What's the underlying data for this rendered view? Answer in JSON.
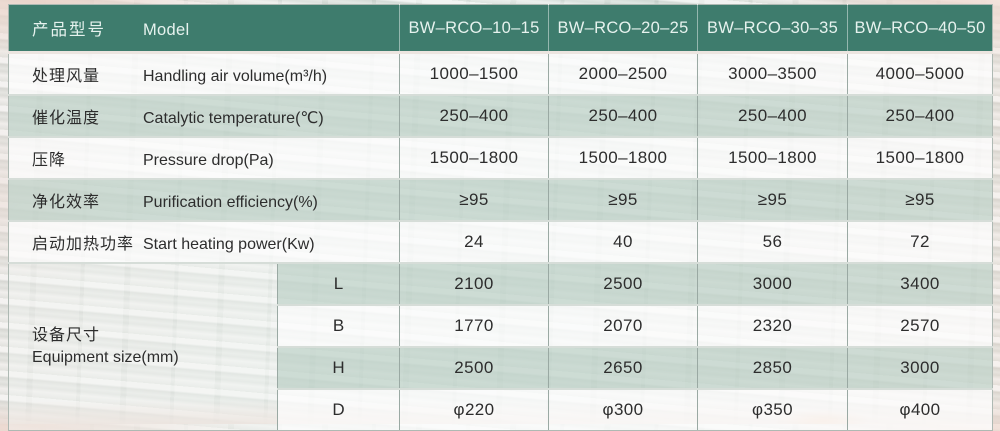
{
  "colors": {
    "header_bg": "#3e7c6d",
    "header_text": "#e6f2ee",
    "row_green": "#ccd8d2",
    "row_white": "#f8f9f7",
    "body_text": "#2d2d2d"
  },
  "table": {
    "header": {
      "label_zh": "产品型号",
      "label_en": "Model",
      "models": [
        "BW–RCO–10–15",
        "BW–RCO–20–25",
        "BW–RCO–30–35",
        "BW–RCO–40–50"
      ]
    },
    "rows": [
      {
        "zh": "处理风量",
        "en": "Handling air volume(m³/h)",
        "values": [
          "1000–1500",
          "2000–2500",
          "3000–3500",
          "4000–5000"
        ]
      },
      {
        "zh": "催化温度",
        "en": "Catalytic temperature(℃)",
        "values": [
          "250–400",
          "250–400",
          "250–400",
          "250–400"
        ]
      },
      {
        "zh": "压降",
        "en": "Pressure drop(Pa)",
        "values": [
          "1500–1800",
          "1500–1800",
          "1500–1800",
          "1500–1800"
        ]
      },
      {
        "zh": "净化效率",
        "en": "Purification efficiency(%)",
        "values": [
          "≥95",
          "≥95",
          "≥95",
          "≥95"
        ]
      },
      {
        "zh": "启动加热功率",
        "en": "Start heating power(Kw)",
        "values": [
          "24",
          "40",
          "56",
          "72"
        ]
      }
    ],
    "equipment_size": {
      "zh": "设备尺寸",
      "en": "Equipment size(mm)",
      "rows": [
        {
          "dim": "L",
          "values": [
            "2100",
            "2500",
            "3000",
            "3400"
          ]
        },
        {
          "dim": "B",
          "values": [
            "1770",
            "2070",
            "2320",
            "2570"
          ]
        },
        {
          "dim": "H",
          "values": [
            "2500",
            "2650",
            "2850",
            "3000"
          ]
        },
        {
          "dim": "D",
          "values": [
            "φ220",
            "φ300",
            "φ350",
            "φ400"
          ]
        }
      ]
    }
  }
}
